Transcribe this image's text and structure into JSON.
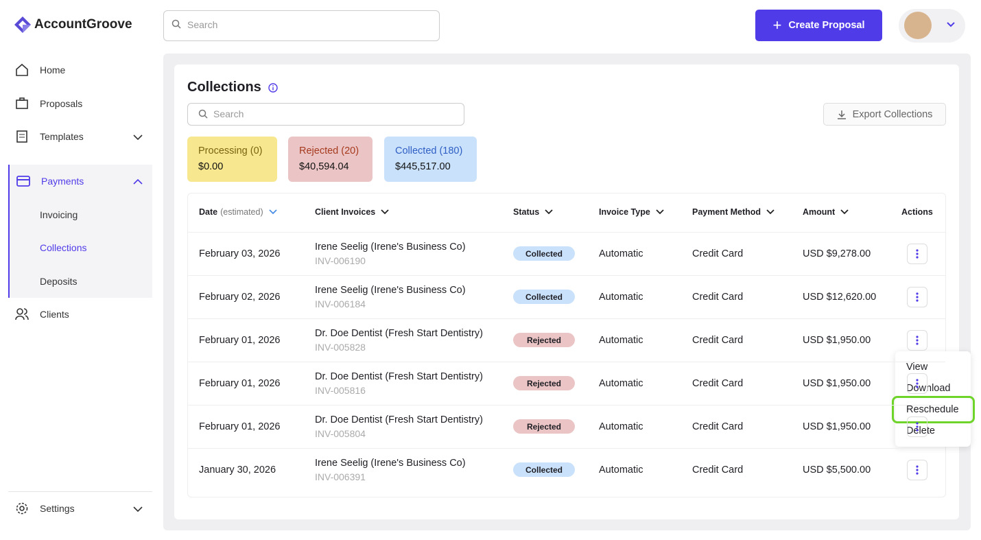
{
  "brand": "AccountGroove",
  "search_placeholder": "Search",
  "create_button": "Create Proposal",
  "nav": [
    {
      "label": "Home"
    },
    {
      "label": "Proposals"
    },
    {
      "label": "Templates"
    },
    {
      "label": "Payments"
    },
    {
      "label": "Clients"
    }
  ],
  "subnav": [
    "Invoicing",
    "Collections",
    "Deposits"
  ],
  "settings": "Settings",
  "page": {
    "title": "Collections",
    "search_placeholder": "Search",
    "export": "Export Collections",
    "summary": [
      {
        "label": "Processing (0)",
        "amount": "$0.00",
        "color": "#f7e78f",
        "text_color": "#7a6410"
      },
      {
        "label": "Rejected (20)",
        "amount": "$40,594.04",
        "color": "#ebc5c5",
        "text_color": "#a63a1e"
      },
      {
        "label": "Collected (180)",
        "amount": "$445,517.00",
        "color": "#c9e1fb",
        "text_color": "#2f5fc4"
      }
    ],
    "table": {
      "headers": [
        "Date",
        "Client Invoices",
        "Status",
        "Invoice Type",
        "Payment Method",
        "Amount",
        "Actions"
      ],
      "date_note": "(estimated)",
      "rows": [
        {
          "date": "February 03, 2026",
          "client": "Irene Seelig (Irene's Business Co)",
          "invoice": "INV-006190",
          "status": "Collected",
          "status_color": "#c9e1fb",
          "type": "Automatic",
          "method": "Credit Card",
          "amount": "USD $9,278.00"
        },
        {
          "date": "February 02, 2026",
          "client": "Irene Seelig (Irene's Business Co)",
          "invoice": "INV-006184",
          "status": "Collected",
          "status_color": "#c9e1fb",
          "type": "Automatic",
          "method": "Credit Card",
          "amount": "USD $12,620.00"
        },
        {
          "date": "February 01, 2026",
          "client": "Dr. Doe Dentist (Fresh Start Dentistry)",
          "invoice": "INV-005828",
          "status": "Rejected",
          "status_color": "#ebc5c5",
          "type": "Automatic",
          "method": "Credit Card",
          "amount": "USD $1,950.00"
        },
        {
          "date": "February 01, 2026",
          "client": "Dr. Doe Dentist (Fresh Start Dentistry)",
          "invoice": "INV-005816",
          "status": "Rejected",
          "status_color": "#ebc5c5",
          "type": "Automatic",
          "method": "Credit Card",
          "amount": "USD $1,950.00"
        },
        {
          "date": "February 01, 2026",
          "client": "Dr. Doe Dentist (Fresh Start Dentistry)",
          "invoice": "INV-005804",
          "status": "Rejected",
          "status_color": "#ebc5c5",
          "type": "Automatic",
          "method": "Credit Card",
          "amount": "USD $1,950.00"
        },
        {
          "date": "January 30, 2026",
          "client": "Irene Seelig (Irene's Business Co)",
          "invoice": "INV-006391",
          "status": "Collected",
          "status_color": "#c9e1fb",
          "type": "Automatic",
          "method": "Credit Card",
          "amount": "USD $5,500.00"
        }
      ]
    }
  },
  "menu": [
    "View",
    "Download",
    "Reschedule",
    "Delete"
  ]
}
